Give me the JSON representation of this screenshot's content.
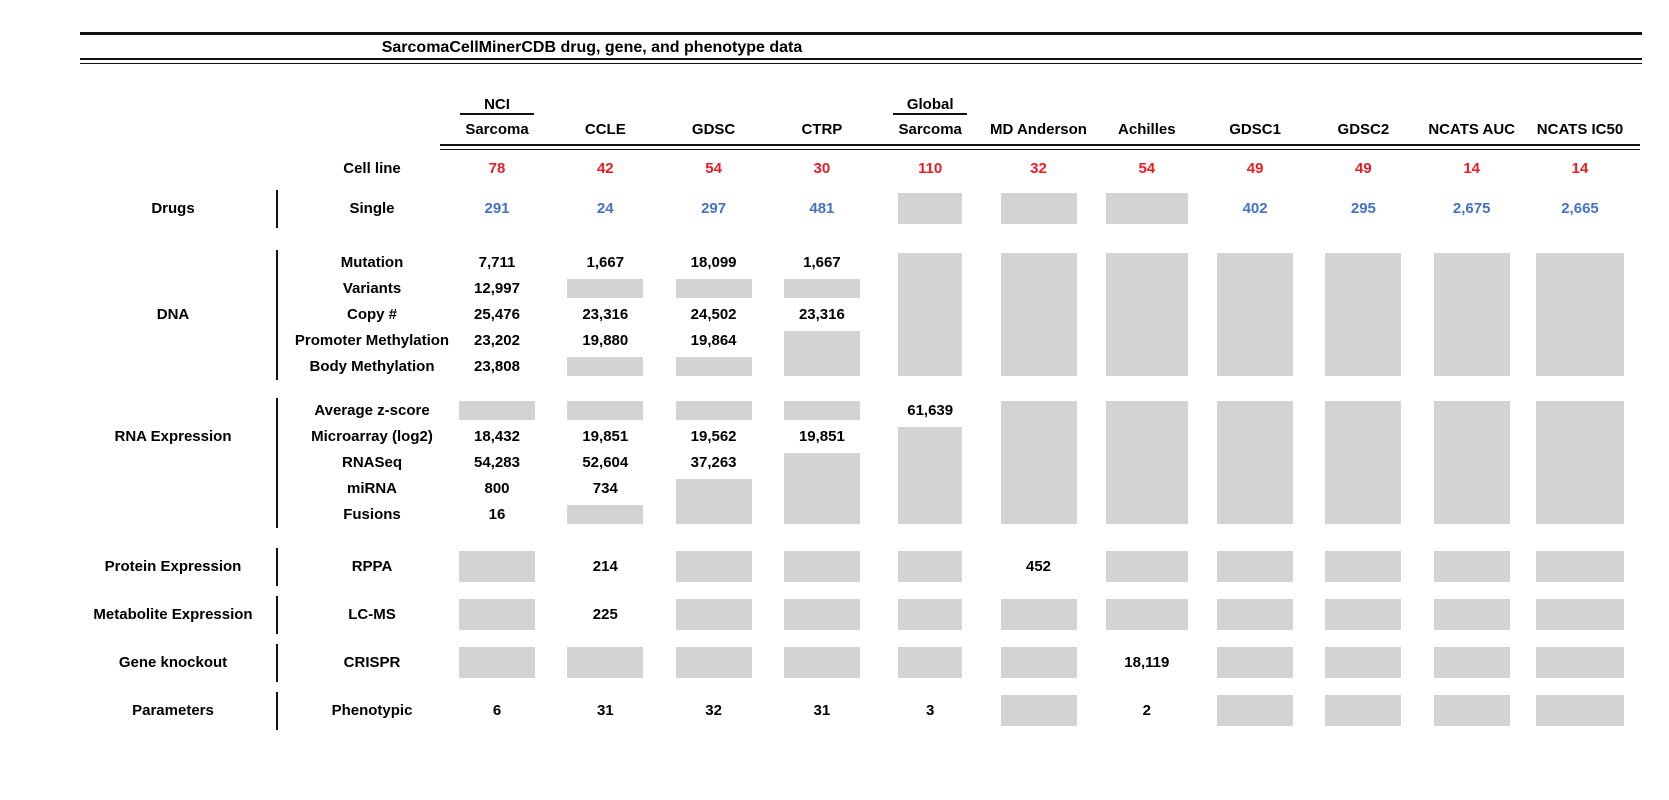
{
  "title": "SarcomaCellMinerCDB drug, gene, and phenotype data",
  "colors": {
    "red": "#ec1c24",
    "blue": "#4472c4",
    "gray": "#d3d3d3",
    "black": "#000000"
  },
  "columns": [
    {
      "top": "NCI",
      "label": "Sarcoma"
    },
    {
      "label": "CCLE"
    },
    {
      "label": "GDSC"
    },
    {
      "label": "CTRP"
    },
    {
      "top": "Global",
      "label": "Sarcoma"
    },
    {
      "label": "MD Anderson"
    },
    {
      "label": "Achilles"
    },
    {
      "label": "GDSC1"
    },
    {
      "label": "GDSC2"
    },
    {
      "label": "NCATS AUC"
    },
    {
      "label": "NCATS IC50"
    }
  ],
  "cell_line_row": {
    "label": "Cell line",
    "values": [
      "78",
      "42",
      "54",
      "30",
      "110",
      "32",
      "54",
      "49",
      "49",
      "14",
      "14"
    ]
  },
  "bands": [
    {
      "group": "Drugs",
      "rows": [
        "Single"
      ],
      "value_color": "blue",
      "columns": [
        {
          "values": [
            "291"
          ]
        },
        {
          "values": [
            "24"
          ]
        },
        {
          "values": [
            "297"
          ]
        },
        {
          "values": [
            "481"
          ]
        },
        {
          "gray": [
            [
              0,
              0
            ]
          ]
        },
        {
          "gray": [
            [
              0,
              0
            ]
          ]
        },
        {
          "gray": [
            [
              0,
              0
            ]
          ]
        },
        {
          "values": [
            "402"
          ]
        },
        {
          "values": [
            "295"
          ]
        },
        {
          "values": [
            "2,675"
          ]
        },
        {
          "values": [
            "2,665"
          ]
        }
      ]
    },
    {
      "group": "DNA",
      "rows": [
        "Mutation",
        "Variants",
        "Copy #",
        "Promoter Methylation",
        "Body Methylation"
      ],
      "columns": [
        {
          "values": [
            "7,711",
            "12,997",
            "25,476",
            "23,202",
            "23,808"
          ]
        },
        {
          "values": [
            "1,667",
            "",
            "23,316",
            "19,880",
            ""
          ],
          "gray": [
            [
              1,
              1
            ],
            [
              4,
              4
            ]
          ]
        },
        {
          "values": [
            "18,099",
            "",
            "24,502",
            "19,864",
            ""
          ],
          "gray": [
            [
              1,
              1
            ],
            [
              4,
              4
            ]
          ]
        },
        {
          "values": [
            "1,667",
            "",
            "23,316",
            "",
            ""
          ],
          "gray": [
            [
              1,
              1
            ],
            [
              3,
              4
            ]
          ]
        },
        {
          "gray": [
            [
              0,
              4
            ]
          ]
        },
        {
          "gray": [
            [
              0,
              4
            ]
          ]
        },
        {
          "gray": [
            [
              0,
              4
            ]
          ]
        },
        {
          "gray": [
            [
              0,
              4
            ]
          ]
        },
        {
          "gray": [
            [
              0,
              4
            ]
          ]
        },
        {
          "gray": [
            [
              0,
              4
            ]
          ]
        },
        {
          "gray": [
            [
              0,
              4
            ]
          ]
        }
      ]
    },
    {
      "group": "RNA Expression",
      "label_row": 1,
      "rows": [
        "Average z-score",
        "Microarray (log2)",
        "RNASeq",
        "miRNA",
        "Fusions"
      ],
      "columns": [
        {
          "values": [
            "",
            "18,432",
            "54,283",
            "800",
            "16"
          ],
          "gray": [
            [
              0,
              0
            ]
          ]
        },
        {
          "values": [
            "",
            "19,851",
            "52,604",
            "734",
            ""
          ],
          "gray": [
            [
              0,
              0
            ],
            [
              4,
              4
            ]
          ]
        },
        {
          "values": [
            "",
            "19,562",
            "37,263",
            "",
            ""
          ],
          "gray": [
            [
              0,
              0
            ],
            [
              3,
              4
            ]
          ]
        },
        {
          "values": [
            "",
            "19,851",
            "",
            "",
            ""
          ],
          "gray": [
            [
              0,
              0
            ],
            [
              2,
              4
            ]
          ]
        },
        {
          "values": [
            "61,639",
            "",
            "",
            "",
            ""
          ],
          "gray": [
            [
              1,
              4
            ]
          ]
        },
        {
          "gray": [
            [
              0,
              4
            ]
          ]
        },
        {
          "gray": [
            [
              0,
              4
            ]
          ]
        },
        {
          "gray": [
            [
              0,
              4
            ]
          ]
        },
        {
          "gray": [
            [
              0,
              4
            ]
          ]
        },
        {
          "gray": [
            [
              0,
              4
            ]
          ]
        },
        {
          "gray": [
            [
              0,
              4
            ]
          ]
        }
      ]
    },
    {
      "group": "Protein Expression",
      "rows": [
        "RPPA"
      ],
      "columns": [
        {
          "gray": [
            [
              0,
              0
            ]
          ]
        },
        {
          "values": [
            "214"
          ]
        },
        {
          "gray": [
            [
              0,
              0
            ]
          ]
        },
        {
          "gray": [
            [
              0,
              0
            ]
          ]
        },
        {
          "gray": [
            [
              0,
              0
            ]
          ]
        },
        {
          "values": [
            "452"
          ]
        },
        {
          "gray": [
            [
              0,
              0
            ]
          ]
        },
        {
          "gray": [
            [
              0,
              0
            ]
          ]
        },
        {
          "gray": [
            [
              0,
              0
            ]
          ]
        },
        {
          "gray": [
            [
              0,
              0
            ]
          ]
        },
        {
          "gray": [
            [
              0,
              0
            ]
          ]
        }
      ]
    },
    {
      "group": "Metabolite Expression",
      "rows": [
        "LC-MS"
      ],
      "columns": [
        {
          "gray": [
            [
              0,
              0
            ]
          ]
        },
        {
          "values": [
            "225"
          ]
        },
        {
          "gray": [
            [
              0,
              0
            ]
          ]
        },
        {
          "gray": [
            [
              0,
              0
            ]
          ]
        },
        {
          "gray": [
            [
              0,
              0
            ]
          ]
        },
        {
          "gray": [
            [
              0,
              0
            ]
          ]
        },
        {
          "gray": [
            [
              0,
              0
            ]
          ]
        },
        {
          "gray": [
            [
              0,
              0
            ]
          ]
        },
        {
          "gray": [
            [
              0,
              0
            ]
          ]
        },
        {
          "gray": [
            [
              0,
              0
            ]
          ]
        },
        {
          "gray": [
            [
              0,
              0
            ]
          ]
        }
      ]
    },
    {
      "group": "Gene knockout",
      "rows": [
        "CRISPR"
      ],
      "columns": [
        {
          "gray": [
            [
              0,
              0
            ]
          ]
        },
        {
          "gray": [
            [
              0,
              0
            ]
          ]
        },
        {
          "gray": [
            [
              0,
              0
            ]
          ]
        },
        {
          "gray": [
            [
              0,
              0
            ]
          ]
        },
        {
          "gray": [
            [
              0,
              0
            ]
          ]
        },
        {
          "gray": [
            [
              0,
              0
            ]
          ]
        },
        {
          "values": [
            "18,119"
          ]
        },
        {
          "gray": [
            [
              0,
              0
            ]
          ]
        },
        {
          "gray": [
            [
              0,
              0
            ]
          ]
        },
        {
          "gray": [
            [
              0,
              0
            ]
          ]
        },
        {
          "gray": [
            [
              0,
              0
            ]
          ]
        }
      ]
    },
    {
      "group": "Parameters",
      "rows": [
        "Phenotypic"
      ],
      "columns": [
        {
          "values": [
            "6"
          ]
        },
        {
          "values": [
            "31"
          ]
        },
        {
          "values": [
            "32"
          ]
        },
        {
          "values": [
            "31"
          ]
        },
        {
          "values": [
            "3"
          ]
        },
        {
          "gray": [
            [
              0,
              0
            ]
          ]
        },
        {
          "values": [
            "2"
          ]
        },
        {
          "gray": [
            [
              0,
              0
            ]
          ]
        },
        {
          "gray": [
            [
              0,
              0
            ]
          ]
        },
        {
          "gray": [
            [
              0,
              0
            ]
          ]
        },
        {
          "gray": [
            [
              0,
              0
            ]
          ]
        }
      ]
    }
  ]
}
